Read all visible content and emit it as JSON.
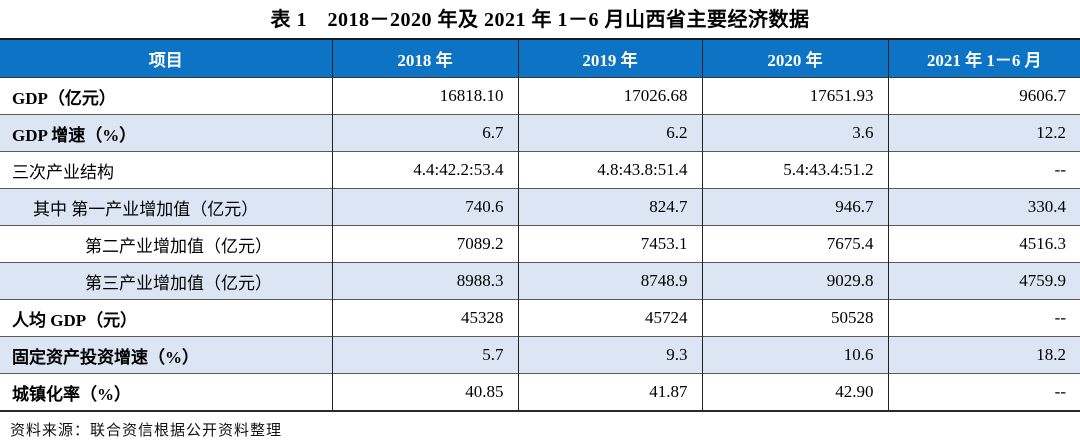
{
  "page": {
    "title": "表 1　2018－2020 年及 2021 年 1－6 月山西省主要经济数据",
    "source_note": "资料来源：联合资信根据公开资料整理"
  },
  "colors": {
    "header_bg": "#0d73c4",
    "header_text": "#ffffff",
    "row_shade": "#dbe5f3",
    "border_dark": "#1a1a1a"
  },
  "table": {
    "columns": [
      "项目",
      "2018 年",
      "2019 年",
      "2020 年",
      "2021 年 1－6 月"
    ],
    "rows": [
      {
        "label": "GDP（亿元）",
        "bold": true,
        "indent": 0,
        "values": [
          "16818.10",
          "17026.68",
          "17651.93",
          "9606.7"
        ]
      },
      {
        "label": "GDP 增速（%）",
        "bold": true,
        "indent": 0,
        "values": [
          "6.7",
          "6.2",
          "3.6",
          "12.2"
        ]
      },
      {
        "label": "三次产业结构",
        "bold": false,
        "indent": 0,
        "values": [
          "4.4:42.2:53.4",
          "4.8:43.8:51.4",
          "5.4:43.4:51.2",
          "--"
        ]
      },
      {
        "label": "其中 第一产业增加值（亿元）",
        "bold": false,
        "indent": 1,
        "values": [
          "740.6",
          "824.7",
          "946.7",
          "330.4"
        ]
      },
      {
        "label": "第二产业增加值（亿元）",
        "bold": false,
        "indent": 2,
        "values": [
          "7089.2",
          "7453.1",
          "7675.4",
          "4516.3"
        ]
      },
      {
        "label": "第三产业增加值（亿元）",
        "bold": false,
        "indent": 2,
        "values": [
          "8988.3",
          "8748.9",
          "9029.8",
          "4759.9"
        ]
      },
      {
        "label": "人均 GDP（元）",
        "bold": true,
        "indent": 0,
        "values": [
          "45328",
          "45724",
          "50528",
          "--"
        ]
      },
      {
        "label": "固定资产投资增速（%）",
        "bold": true,
        "indent": 0,
        "values": [
          "5.7",
          "9.3",
          "10.6",
          "18.2"
        ]
      },
      {
        "label": "城镇化率（%）",
        "bold": true,
        "indent": 0,
        "values": [
          "40.85",
          "41.87",
          "42.90",
          "--"
        ]
      }
    ]
  }
}
